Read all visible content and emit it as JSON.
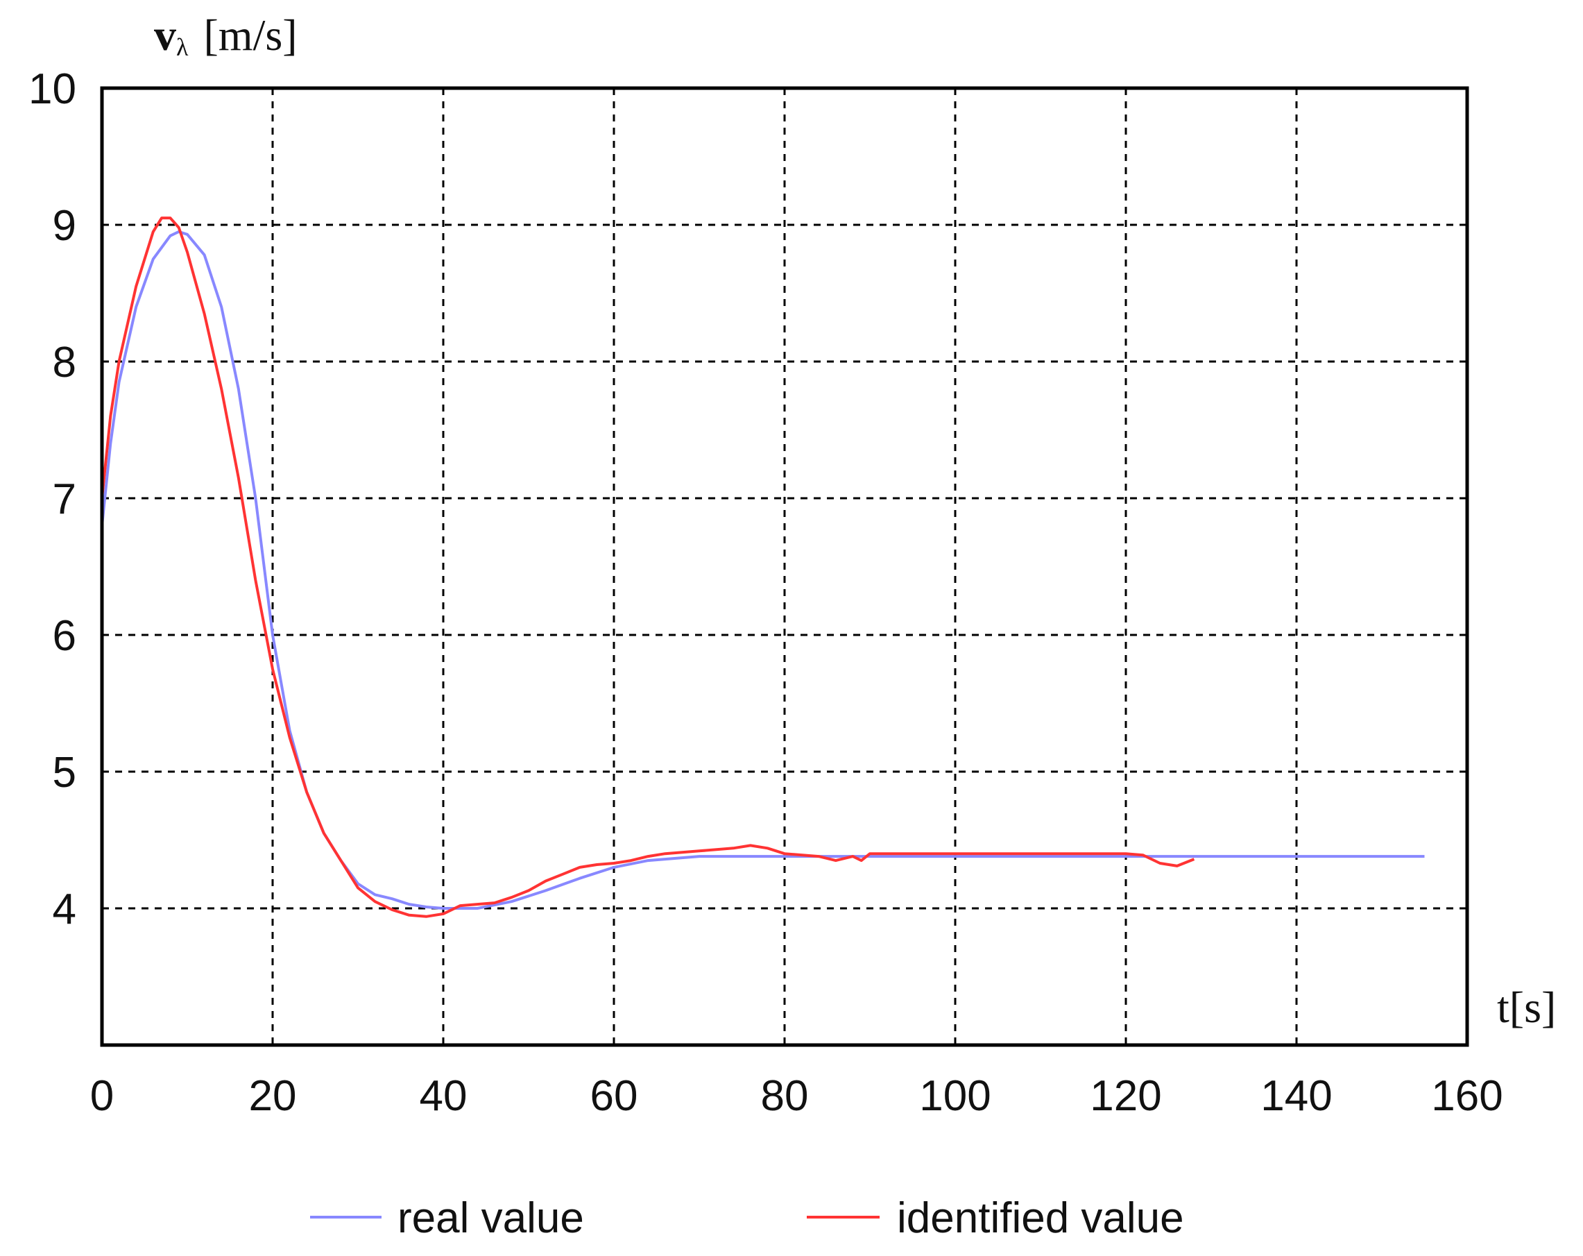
{
  "chart_data": {
    "type": "line",
    "ylabel_symbol": "v",
    "ylabel_subscript": "λ",
    "ylabel_unit": "[m/s]",
    "xlabel": "t[s]",
    "xlim": [
      0,
      160
    ],
    "ylim": [
      3,
      10
    ],
    "x_ticks": [
      "0",
      "20",
      "40",
      "60",
      "80",
      "100",
      "120",
      "140",
      "160"
    ],
    "y_ticks": [
      "4",
      "5",
      "6",
      "7",
      "8",
      "9",
      "10"
    ],
    "x_tick_values": [
      0,
      20,
      40,
      60,
      80,
      100,
      120,
      140,
      160
    ],
    "y_tick_values": [
      4,
      5,
      6,
      7,
      8,
      9,
      10
    ],
    "grid": true,
    "grid_style": "dashed",
    "legend_position": "bottom",
    "series": [
      {
        "name": "real value",
        "color": "#8888ff",
        "points": [
          [
            0,
            6.8
          ],
          [
            1,
            7.4
          ],
          [
            2,
            7.85
          ],
          [
            4,
            8.4
          ],
          [
            6,
            8.75
          ],
          [
            8,
            8.92
          ],
          [
            9,
            8.95
          ],
          [
            10,
            8.93
          ],
          [
            12,
            8.78
          ],
          [
            14,
            8.4
          ],
          [
            16,
            7.8
          ],
          [
            18,
            7.0
          ],
          [
            20,
            6.0
          ],
          [
            22,
            5.3
          ],
          [
            24,
            4.85
          ],
          [
            26,
            4.55
          ],
          [
            28,
            4.35
          ],
          [
            30,
            4.18
          ],
          [
            32,
            4.1
          ],
          [
            34,
            4.07
          ],
          [
            36,
            4.03
          ],
          [
            38,
            4.01
          ],
          [
            40,
            4.0
          ],
          [
            44,
            4.0
          ],
          [
            48,
            4.05
          ],
          [
            52,
            4.13
          ],
          [
            56,
            4.22
          ],
          [
            60,
            4.3
          ],
          [
            64,
            4.35
          ],
          [
            70,
            4.38
          ],
          [
            80,
            4.38
          ],
          [
            90,
            4.38
          ],
          [
            100,
            4.38
          ],
          [
            110,
            4.38
          ],
          [
            120,
            4.38
          ],
          [
            130,
            4.38
          ],
          [
            140,
            4.38
          ],
          [
            150,
            4.38
          ],
          [
            155,
            4.38
          ]
        ]
      },
      {
        "name": "identified value",
        "color": "#ff3333",
        "points": [
          [
            0,
            7.0
          ],
          [
            1,
            7.6
          ],
          [
            2,
            8.0
          ],
          [
            4,
            8.55
          ],
          [
            6,
            8.95
          ],
          [
            7,
            9.05
          ],
          [
            8,
            9.05
          ],
          [
            9,
            8.98
          ],
          [
            10,
            8.8
          ],
          [
            12,
            8.35
          ],
          [
            14,
            7.8
          ],
          [
            16,
            7.15
          ],
          [
            18,
            6.4
          ],
          [
            20,
            5.75
          ],
          [
            22,
            5.25
          ],
          [
            24,
            4.85
          ],
          [
            26,
            4.55
          ],
          [
            28,
            4.35
          ],
          [
            30,
            4.15
          ],
          [
            32,
            4.05
          ],
          [
            34,
            3.99
          ],
          [
            36,
            3.95
          ],
          [
            38,
            3.94
          ],
          [
            40,
            3.96
          ],
          [
            42,
            4.02
          ],
          [
            46,
            4.04
          ],
          [
            48,
            4.08
          ],
          [
            50,
            4.13
          ],
          [
            52,
            4.2
          ],
          [
            54,
            4.25
          ],
          [
            56,
            4.3
          ],
          [
            58,
            4.32
          ],
          [
            60,
            4.33
          ],
          [
            62,
            4.35
          ],
          [
            64,
            4.38
          ],
          [
            66,
            4.4
          ],
          [
            70,
            4.42
          ],
          [
            74,
            4.44
          ],
          [
            76,
            4.46
          ],
          [
            78,
            4.44
          ],
          [
            80,
            4.4
          ],
          [
            84,
            4.38
          ],
          [
            86,
            4.35
          ],
          [
            88,
            4.38
          ],
          [
            89,
            4.35
          ],
          [
            90,
            4.4
          ],
          [
            95,
            4.4
          ],
          [
            100,
            4.4
          ],
          [
            105,
            4.4
          ],
          [
            110,
            4.4
          ],
          [
            115,
            4.4
          ],
          [
            120,
            4.4
          ],
          [
            122,
            4.39
          ],
          [
            124,
            4.33
          ],
          [
            126,
            4.31
          ],
          [
            128,
            4.36
          ]
        ]
      }
    ]
  }
}
